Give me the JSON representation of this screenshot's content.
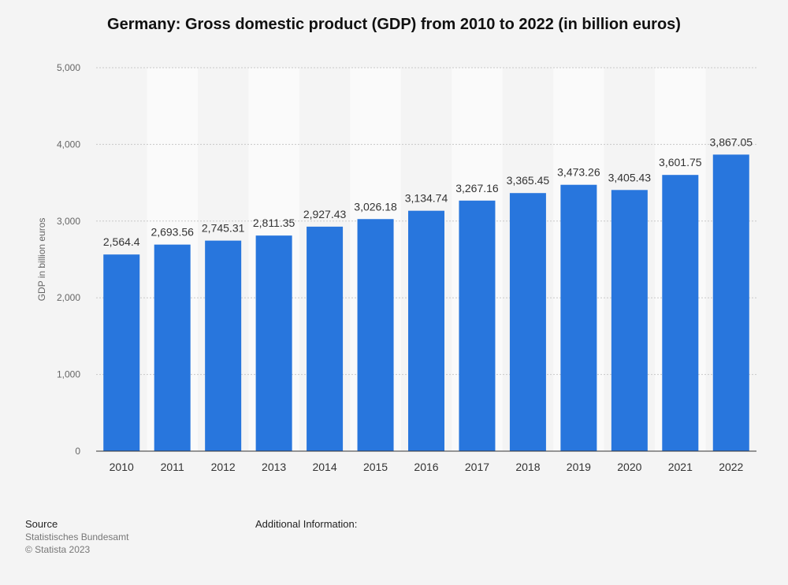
{
  "chart_data": {
    "type": "bar",
    "title": "Germany: Gross domestic product (GDP) from 2010 to 2022 (in billion euros)",
    "xlabel": "",
    "ylabel": "GDP in billion euros",
    "categories": [
      "2010",
      "2011",
      "2012",
      "2013",
      "2014",
      "2015",
      "2016",
      "2017",
      "2018",
      "2019",
      "2020",
      "2021",
      "2022"
    ],
    "values": [
      2564.4,
      2693.56,
      2745.31,
      2811.35,
      2927.43,
      3026.18,
      3134.74,
      3267.16,
      3365.45,
      3473.26,
      3405.43,
      3601.75,
      3867.05
    ],
    "value_labels": [
      "2,564.4",
      "2,693.56",
      "2,745.31",
      "2,811.35",
      "2,927.43",
      "3,026.18",
      "3,134.74",
      "3,267.16",
      "3,365.45",
      "3,473.26",
      "3,405.43",
      "3,601.75",
      "3,867.05"
    ],
    "ylim": [
      0,
      5000
    ],
    "yticks": [
      0,
      1000,
      2000,
      3000,
      4000,
      5000
    ],
    "ytick_labels": [
      "0",
      "1,000",
      "2,000",
      "3,000",
      "4,000",
      "5,000"
    ],
    "grid": true,
    "bar_color": "#2876dd"
  },
  "footer": {
    "source_heading": "Source",
    "source_name": "Statistisches Bundesamt",
    "copyright": "© Statista 2023",
    "additional_info": "Additional Information:"
  }
}
